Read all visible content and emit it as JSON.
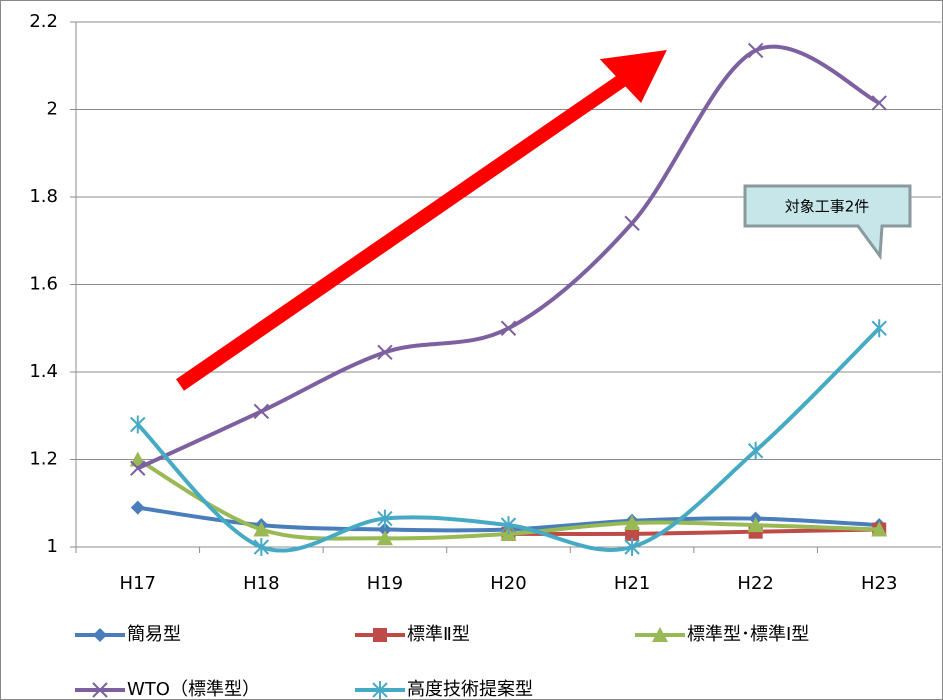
{
  "chart_data": {
    "type": "line",
    "smooth": true,
    "categories": [
      "H17",
      "H18",
      "H19",
      "H20",
      "H21",
      "H22",
      "H23"
    ],
    "series": [
      {
        "name": "簡易型",
        "color": "#4a7ebb",
        "marker": "diamond",
        "values": [
          1.09,
          1.05,
          1.04,
          1.04,
          1.06,
          1.065,
          1.05
        ]
      },
      {
        "name": "標準Ⅱ型",
        "color": "#be4b48",
        "marker": "square",
        "values": [
          null,
          null,
          null,
          1.03,
          1.03,
          1.035,
          1.04
        ]
      },
      {
        "name": "標準型･標準Ⅰ型",
        "color": "#98b954",
        "marker": "triangle",
        "values": [
          1.2,
          1.04,
          1.02,
          1.03,
          1.055,
          1.05,
          1.04
        ]
      },
      {
        "name": "WTO（標準型）",
        "color": "#7d60a0",
        "marker": "x",
        "values": [
          1.18,
          1.31,
          1.445,
          1.5,
          1.74,
          2.135,
          2.015
        ]
      },
      {
        "name": "高度技術提案型",
        "color": "#46aac5",
        "marker": "star",
        "values": [
          1.28,
          1.0,
          1.065,
          1.05,
          1.0,
          1.22,
          1.5
        ]
      }
    ],
    "ylim": [
      1,
      2.2
    ],
    "yticks": [
      1,
      1.2,
      1.4,
      1.6,
      1.8,
      2,
      2.2
    ],
    "grid": true,
    "annotation": "対象工事2件"
  }
}
